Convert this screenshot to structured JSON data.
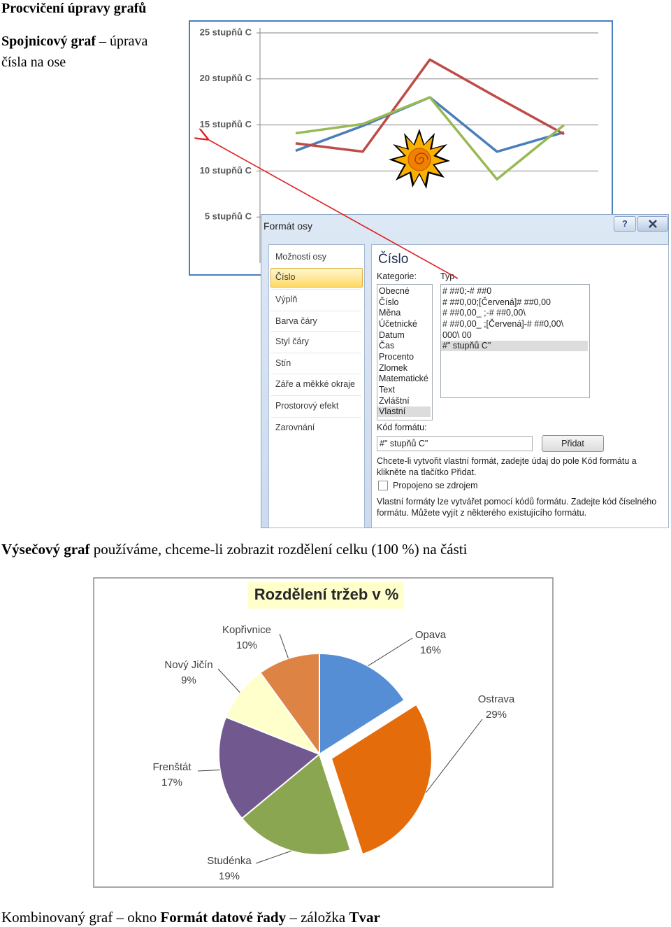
{
  "title": "Procvičení úpravy grafů",
  "section1": [
    {
      "text": "Spojnicový graf",
      "bold": true
    },
    {
      "text": " – úprava čísla na ose",
      "bold": false
    }
  ],
  "line_chart": {
    "type": "line",
    "categories": [
      null,
      null,
      null,
      null,
      null
    ],
    "ylim": [
      0,
      25
    ],
    "yticks": [
      {
        "value": 5,
        "label": "5 stupňů C"
      },
      {
        "value": 10,
        "label": "10 stupňů C"
      },
      {
        "value": 15,
        "label": "15 stupňů C"
      },
      {
        "value": 20,
        "label": "20 stupňů C"
      },
      {
        "value": 25,
        "label": "25 stupňů C"
      }
    ],
    "grid": true,
    "series": [
      {
        "color": "#4a7ebb",
        "values": [
          12.2,
          14.9,
          18,
          12.1,
          14.2
        ]
      },
      {
        "color": "#be4b48",
        "values": [
          13,
          12.1,
          22.1,
          18,
          14
        ]
      },
      {
        "color": "#98b954",
        "values": [
          14.1,
          15.1,
          18,
          9.1,
          15
        ]
      }
    ]
  },
  "dialog": {
    "title": "Formát osy",
    "help_button": "?",
    "nav": [
      "Možnosti osy",
      "Číslo",
      "Výplň",
      "Barva čáry",
      "Styl čáry",
      "Stín",
      "Záře a měkké okraje",
      "Prostorový efekt",
      "Zarovnání"
    ],
    "selected_nav": 1,
    "heading": "Číslo",
    "category_label": "Kategorie:",
    "type_label": "Typ",
    "categories": [
      "Obecné",
      "Číslo",
      "Měna",
      "Účetnické",
      "Datum",
      "Čas",
      "Procento",
      "Zlomek",
      "Matematické",
      "Text",
      "Zvláštní",
      "Vlastní"
    ],
    "selected_category": 11,
    "types": [
      "# ##0;-# ##0",
      "# ##0,00;[Červená]# ##0,00",
      "# ##0,00_ ;-# ##0,00\\",
      "# ##0,00_ ;[Červená]-# ##0,00\\",
      "000\\ 00",
      "#\" stupňů C\""
    ],
    "selected_type": 5,
    "format_code_label": "Kód formátu:",
    "format_code": "#\" stupňů C\"",
    "add_button": "Přidat",
    "hint": "Chcete-li vytvořit vlastní formát, zadejte údaj do pole Kód formátu a klikněte na tlačítko Přidat.",
    "linked_label": "Propojeno se zdrojem",
    "linked": false,
    "note": "Vlastní formáty lze vytvářet pomocí kódů formátu. Zadejte kód číselného formátu. Můžete vyjít z některého existujícího formátu."
  },
  "section2": [
    {
      "text": "Výsečový graf",
      "bold": true
    },
    {
      "text": " používáme, chceme-li zobrazit rozdělení celku (100 %) na části",
      "bold": false
    }
  ],
  "pie_chart": {
    "type": "pie",
    "title": "Rozdělení tržeb v %",
    "categories": [
      "Opava",
      "Ostrava",
      "Studénka",
      "Frenštát",
      "Nový Jičín",
      "Kopřivnice"
    ],
    "values": [
      16,
      29,
      19,
      17,
      9,
      10
    ],
    "value_labels": [
      "16%",
      "29%",
      "19%",
      "17%",
      "9%",
      "10%"
    ],
    "colors": [
      "#558ed5",
      "#e46c0a",
      "#8aa650",
      "#71588f",
      "#ffffcc",
      "#dd8344"
    ],
    "exploded": [
      false,
      true,
      false,
      false,
      false,
      false
    ]
  },
  "section3": [
    {
      "text": "Kombinovaný graf – okno ",
      "bold": false
    },
    {
      "text": "Formát datové řady",
      "bold": true
    },
    {
      "text": " – záložka ",
      "bold": false
    },
    {
      "text": "Tvar",
      "bold": true
    }
  ]
}
